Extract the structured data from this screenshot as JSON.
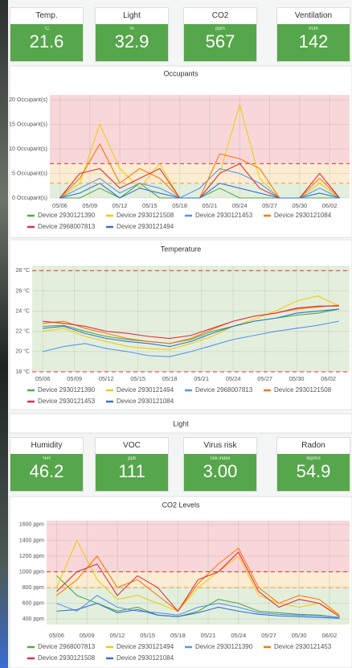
{
  "tiles_top": [
    {
      "title": "Temp.",
      "unit": "°C",
      "value": "21.6"
    },
    {
      "title": "Light",
      "unit": "%",
      "value": "32.9"
    },
    {
      "title": "CO2",
      "unit": "ppm",
      "value": "567"
    },
    {
      "title": "Ventilation",
      "unit": "m3h",
      "value": "142"
    }
  ],
  "light_panel": {
    "title": "Light"
  },
  "tiles_bottom": [
    {
      "title": "Humidity",
      "unit": "%H",
      "value": "46.2"
    },
    {
      "title": "VOC",
      "unit": "ppb",
      "value": "111"
    },
    {
      "title": "Virus risk",
      "unit": "risk index",
      "value": "3.00"
    },
    {
      "title": "Radon",
      "unit": "Bq/m3",
      "value": "54.9"
    }
  ],
  "chart_data": [
    {
      "type": "line",
      "title": "Occupants",
      "x": [
        "05/06",
        "05/08",
        "05/10",
        "05/12",
        "05/14",
        "05/16",
        "05/18",
        "05/20",
        "05/22",
        "05/24",
        "05/26",
        "05/28",
        "05/30",
        "06/01",
        "06/03"
      ],
      "xlim": [
        "05/05",
        "06/04"
      ],
      "xticks": [
        "05/06",
        "05/09",
        "05/12",
        "05/15",
        "05/18",
        "05/21",
        "05/24",
        "05/27",
        "05/30",
        "06/02"
      ],
      "ylim": [
        0,
        21
      ],
      "yticks": [
        {
          "value": 0,
          "label": "0 Occupant(s)"
        },
        {
          "value": 5,
          "label": "5 Occupant(s)"
        },
        {
          "value": 10,
          "label": "10 Occupant(s)"
        },
        {
          "value": 15,
          "label": "15 Occupant(s)"
        },
        {
          "value": 20,
          "label": "20 Occupant(s)"
        }
      ],
      "bands": [
        {
          "from": 7,
          "to": 21,
          "color": "#f8d7da"
        },
        {
          "from": 3,
          "to": 7,
          "color": "#fbecd2"
        },
        {
          "from": 0,
          "to": 3,
          "color": "#e3efdc"
        }
      ],
      "thresholds": [
        {
          "value": 7,
          "color": "#e02f44"
        },
        {
          "value": 3,
          "color": "#ff9830"
        }
      ],
      "series": [
        {
          "name": "Device 2930121390",
          "color": "#56a64b",
          "values": [
            0,
            0,
            2,
            0,
            3,
            0,
            0,
            0,
            2,
            0,
            0,
            0,
            0,
            0,
            0
          ]
        },
        {
          "name": "Device 2930121508",
          "color": "#f2cc0c",
          "values": [
            0,
            3,
            15,
            6,
            2,
            7,
            0,
            0,
            5,
            19,
            4,
            0,
            0,
            3,
            0
          ]
        },
        {
          "name": "Device 2930121453",
          "color": "#5794f2",
          "values": [
            0,
            2,
            4,
            1,
            3,
            2,
            0,
            2,
            6,
            5,
            3,
            0,
            0,
            2,
            0
          ]
        },
        {
          "name": "Device 2930121084",
          "color": "#ff780a",
          "values": [
            0,
            4,
            11,
            3,
            6,
            4,
            0,
            0,
            9,
            8,
            6,
            0,
            0,
            4,
            0
          ]
        },
        {
          "name": "Device 2968007813",
          "color": "#e02f44",
          "values": [
            0,
            5,
            6,
            2,
            4,
            6,
            0,
            0,
            5,
            7,
            2,
            0,
            0,
            5,
            0
          ]
        },
        {
          "name": "Device 2930121494",
          "color": "#3274d9",
          "values": [
            0,
            1,
            3,
            0,
            2,
            1,
            0,
            0,
            3,
            2,
            1,
            0,
            0,
            1,
            0
          ]
        }
      ]
    },
    {
      "type": "line",
      "title": "Temperature",
      "x": [
        "05/06",
        "05/08",
        "05/10",
        "05/12",
        "05/14",
        "05/16",
        "05/18",
        "05/20",
        "05/22",
        "05/24",
        "05/26",
        "05/28",
        "05/30",
        "06/01",
        "06/03"
      ],
      "xlim": [
        "05/05",
        "06/04"
      ],
      "xticks": [
        "05/06",
        "05/09",
        "05/12",
        "05/15",
        "05/18",
        "05/21",
        "05/24",
        "05/27",
        "05/30",
        "06/02"
      ],
      "ylim": [
        18,
        28.5
      ],
      "yticks": [
        {
          "value": 18,
          "label": "18 °C"
        },
        {
          "value": 20,
          "label": "20 °C"
        },
        {
          "value": 22,
          "label": "22 °C"
        },
        {
          "value": 24,
          "label": "24 °C"
        },
        {
          "value": 26,
          "label": "26 °C"
        },
        {
          "value": 28,
          "label": "28 °C"
        }
      ],
      "bands": [
        {
          "from": 18,
          "to": 28.5,
          "color": "#e3efdc"
        }
      ],
      "thresholds": [
        {
          "value": 28,
          "color": "#e02f44"
        },
        {
          "value": 18,
          "color": "#e02f44"
        }
      ],
      "series": [
        {
          "name": "Device 2930121390",
          "color": "#56a64b",
          "values": [
            22.5,
            22.6,
            22,
            21.5,
            21.2,
            21,
            20.8,
            21.2,
            22,
            22.5,
            23,
            23.3,
            23.6,
            23.8,
            24.2
          ]
        },
        {
          "name": "Device 2930121494",
          "color": "#f2cc0c",
          "values": [
            22,
            22.3,
            21.5,
            21,
            20.5,
            20.3,
            20.2,
            20.8,
            21.5,
            22.5,
            23.2,
            24,
            25,
            25.5,
            24.5
          ]
        },
        {
          "name": "Device 2968007813",
          "color": "#5794f2",
          "values": [
            20,
            20.5,
            20.8,
            20.3,
            20,
            19.6,
            19.5,
            20,
            20.6,
            21.2,
            21.6,
            22,
            22.3,
            22.6,
            23
          ]
        },
        {
          "name": "Device 2930121508",
          "color": "#ff780a",
          "values": [
            22.8,
            23,
            22.3,
            21.8,
            21.3,
            21,
            20.8,
            21.3,
            22.2,
            23,
            23.5,
            23.8,
            24.2,
            24.4,
            24.6
          ]
        },
        {
          "name": "Device 2930121453",
          "color": "#e02f44",
          "values": [
            23,
            22.8,
            22.5,
            22,
            21.8,
            21.5,
            21.3,
            21.6,
            22.3,
            23,
            23.5,
            23.8,
            24.3,
            24.5,
            24.5
          ]
        },
        {
          "name": "Device 2930121084",
          "color": "#3274d9",
          "values": [
            22.3,
            22.5,
            21.8,
            21.3,
            21,
            20.8,
            20.5,
            21,
            21.8,
            22.5,
            23,
            23.3,
            23.8,
            24,
            24.2
          ]
        }
      ]
    },
    {
      "type": "line",
      "title": "CO2 Levels",
      "x": [
        "05/06",
        "05/08",
        "05/10",
        "05/12",
        "05/14",
        "05/16",
        "05/18",
        "05/20",
        "05/22",
        "05/24",
        "05/26",
        "05/28",
        "05/30",
        "06/01",
        "06/03"
      ],
      "xlim": [
        "05/05",
        "06/04"
      ],
      "xticks": [
        "05/06",
        "05/09",
        "05/12",
        "05/15",
        "05/18",
        "05/21",
        "05/24",
        "05/27",
        "05/30",
        "06/02"
      ],
      "ylim": [
        330,
        1650
      ],
      "yticks": [
        {
          "value": 400,
          "label": "400 ppm"
        },
        {
          "value": 600,
          "label": "600 ppm"
        },
        {
          "value": 800,
          "label": "800 ppm"
        },
        {
          "value": 1000,
          "label": "1000 ppm"
        },
        {
          "value": 1200,
          "label": "1200 ppm"
        },
        {
          "value": 1400,
          "label": "1400 ppm"
        },
        {
          "value": 1600,
          "label": "1600 ppm"
        }
      ],
      "bands": [
        {
          "from": 1000,
          "to": 1650,
          "color": "#f8d7da"
        },
        {
          "from": 800,
          "to": 1000,
          "color": "#fbecd2"
        },
        {
          "from": 330,
          "to": 800,
          "color": "#e3efdc"
        }
      ],
      "thresholds": [
        {
          "value": 1000,
          "color": "#e02f44"
        },
        {
          "value": 800,
          "color": "#ff9830"
        }
      ],
      "series": [
        {
          "name": "Device 2968007813",
          "color": "#56a64b",
          "values": [
            950,
            700,
            600,
            500,
            550,
            450,
            430,
            500,
            650,
            600,
            500,
            480,
            460,
            450,
            420
          ]
        },
        {
          "name": "Device 2930121494",
          "color": "#f2cc0c",
          "values": [
            800,
            1400,
            900,
            650,
            700,
            600,
            500,
            800,
            1000,
            1200,
            700,
            600,
            550,
            600,
            450
          ]
        },
        {
          "name": "Device 2930121390",
          "color": "#5794f2",
          "values": [
            600,
            500,
            700,
            550,
            500,
            480,
            450,
            550,
            600,
            550,
            480,
            460,
            450,
            440,
            420
          ]
        },
        {
          "name": "Device 2930121453",
          "color": "#ff780a",
          "values": [
            700,
            900,
            1200,
            800,
            900,
            700,
            500,
            850,
            1100,
            1300,
            800,
            600,
            700,
            650,
            450
          ]
        },
        {
          "name": "Device 2930121508",
          "color": "#e02f44",
          "values": [
            750,
            1000,
            1100,
            700,
            950,
            800,
            500,
            900,
            1000,
            1250,
            750,
            550,
            650,
            600,
            430
          ]
        },
        {
          "name": "Device 2930121084",
          "color": "#3274d9",
          "values": [
            500,
            520,
            600,
            480,
            520,
            450,
            430,
            480,
            550,
            500,
            460,
            440,
            430,
            420,
            410
          ]
        }
      ]
    }
  ]
}
